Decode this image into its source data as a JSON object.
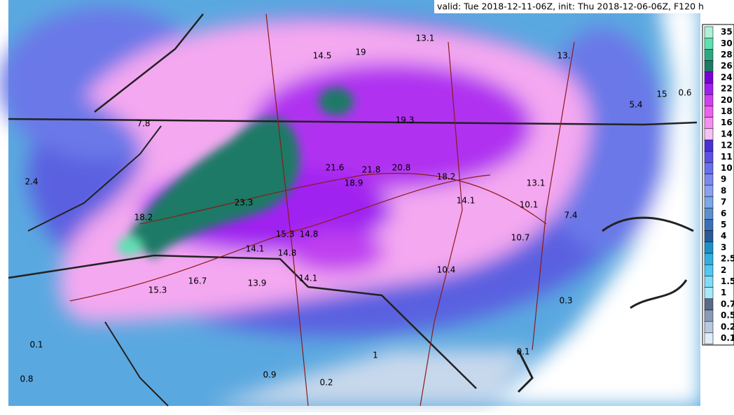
{
  "header": {
    "valid_line": "valid: Tue 2018-12-11-06Z, init: Thu 2018-12-06-06Z, F120 h"
  },
  "legend": [
    {
      "label": "35",
      "color": "#aef0d8"
    },
    {
      "label": "30",
      "color": "#5ee0b0"
    },
    {
      "label": "28",
      "color": "#2ea882"
    },
    {
      "label": "26",
      "color": "#1e7a66"
    },
    {
      "label": "24",
      "color": "#7a00d8"
    },
    {
      "label": "22",
      "color": "#a020f0"
    },
    {
      "label": "20",
      "color": "#d040f0"
    },
    {
      "label": "18",
      "color": "#ee60ee"
    },
    {
      "label": "16",
      "color": "#f490f0"
    },
    {
      "label": "14",
      "color": "#f8c0f4"
    },
    {
      "label": "12",
      "color": "#4a30d8"
    },
    {
      "label": "11",
      "color": "#5a50e8"
    },
    {
      "label": "10",
      "color": "#6870f0"
    },
    {
      "label": "9",
      "color": "#7a88f0"
    },
    {
      "label": "8",
      "color": "#8aa0f0"
    },
    {
      "label": "7",
      "color": "#7aa8e8"
    },
    {
      "label": "6",
      "color": "#5a90d0"
    },
    {
      "label": "5",
      "color": "#3a70b8"
    },
    {
      "label": "4",
      "color": "#2a5a9a"
    },
    {
      "label": "3",
      "color": "#1e90c8"
    },
    {
      "label": "2.5",
      "color": "#30b0e0"
    },
    {
      "label": "2",
      "color": "#50c8f0"
    },
    {
      "label": "1.5",
      "color": "#80dcf8"
    },
    {
      "label": "1",
      "color": "#a8e8fc"
    },
    {
      "label": "0.7",
      "color": "#5a6a88"
    },
    {
      "label": "0.5",
      "color": "#8a9ab8"
    },
    {
      "label": "0.2",
      "color": "#b8c8e0"
    },
    {
      "label": "0.1",
      "color": "#e0ecf8"
    }
  ],
  "labels": [
    "13.1",
    "14.5",
    "19",
    "13.",
    "5.4",
    "0.6",
    "15",
    "7.8",
    "19.3",
    "2.4",
    "21.6",
    "21.8",
    "20.8",
    "18.2",
    "18.9",
    "13.1",
    "23.3",
    "14.1",
    "10.1",
    "7.4",
    "18.2",
    "15.3",
    "14.8",
    "14.1",
    "14.8",
    "10.7",
    "10.4",
    "13.9",
    "14.1",
    "15.3",
    "16.7",
    "0.3",
    "0.1",
    "0.1",
    "1",
    "0.8",
    "0.9",
    "0.2"
  ]
}
